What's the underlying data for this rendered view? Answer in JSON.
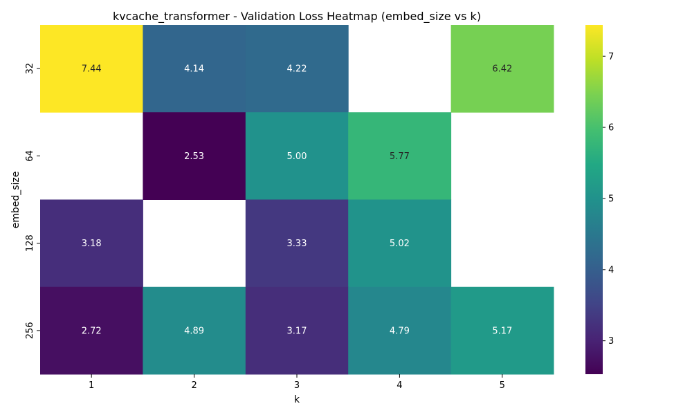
{
  "chart_data": {
    "type": "heatmap",
    "title": "kvcache_transformer - Validation Loss Heatmap (embed_size vs k)",
    "xlabel": "k",
    "ylabel": "embed_size",
    "x_categories": [
      "1",
      "2",
      "3",
      "4",
      "5"
    ],
    "y_categories": [
      "32",
      "64",
      "128",
      "256"
    ],
    "values": [
      [
        7.44,
        4.14,
        4.22,
        null,
        6.42
      ],
      [
        null,
        2.53,
        5.0,
        5.77,
        null
      ],
      [
        3.18,
        null,
        3.33,
        5.02,
        null
      ],
      [
        2.72,
        4.89,
        3.17,
        4.79,
        5.17
      ]
    ],
    "value_format": "0.00",
    "colormap": "viridis",
    "color_range": [
      2.53,
      7.44
    ],
    "colorbar_ticks": [
      3,
      4,
      5,
      6,
      7
    ],
    "missing_cells": "blank (white)"
  }
}
